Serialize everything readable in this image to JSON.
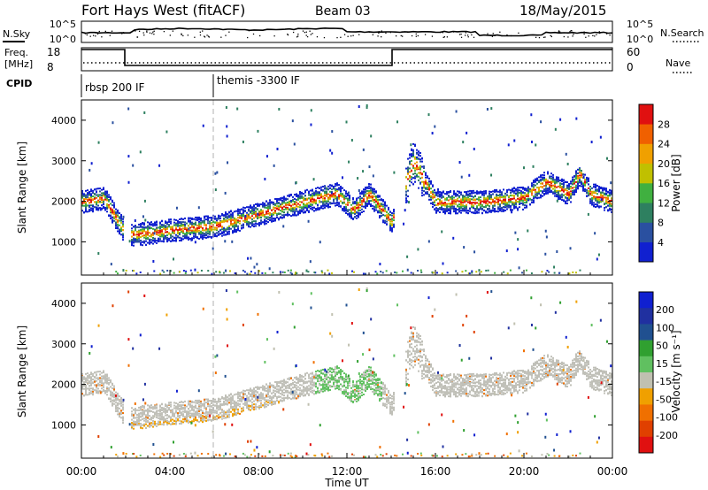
{
  "header": {
    "station": "Fort Hays West (fitACF)",
    "beam": "Beam 03",
    "date": "18/May/2015"
  },
  "noise_panel": {
    "left_label": "N.Sky",
    "right_label": "N.Search",
    "left_ticks": [
      "10^5",
      "10^0"
    ],
    "right_ticks": [
      "10^5",
      "10^0"
    ]
  },
  "freq_panel": {
    "left_label_1": "Freq.",
    "left_label_2": "[MHz]",
    "right_label": "Nave",
    "left_ticks": [
      "18",
      "8"
    ],
    "right_ticks": [
      "60",
      "0"
    ]
  },
  "cpid": {
    "label": "CPID",
    "modes": [
      "rbsp 200 IF",
      "themis -3300 IF"
    ]
  },
  "time_axis": {
    "label": "Time UT",
    "ticks": [
      "00:00",
      "04:00",
      "08:00",
      "12:00",
      "16:00",
      "20:00",
      "00:00"
    ]
  },
  "colors": {
    "power": [
      "#1020d0",
      "#2a50a0",
      "#2e8060",
      "#40b040",
      "#c0c000",
      "#f0a000",
      "#f06000",
      "#e01010"
    ],
    "velocity": [
      "#1020d0",
      "#2030a0",
      "#205090",
      "#30a030",
      "#60c060",
      "#c0c0b0",
      "#f0a000",
      "#f07000",
      "#e04000",
      "#e01010"
    ],
    "ground": "#c0c0b8"
  },
  "chart_data": [
    {
      "type": "heatmap",
      "name": "power",
      "xlabel": "Time UT",
      "ylabel": "Slant Range [km]",
      "xlim": [
        0,
        24
      ],
      "ylim": [
        180,
        4500
      ],
      "y_ticks": [
        1000,
        2000,
        3000,
        4000
      ],
      "colorbar": {
        "label": "Power [dB]",
        "range": [
          0,
          32
        ],
        "ticks": [
          4,
          8,
          12,
          16,
          20,
          24,
          28
        ]
      },
      "scatter_band": {
        "time_h": [
          0,
          1,
          2,
          2.5,
          4,
          6,
          8,
          10,
          11.5,
          12.3,
          13,
          14,
          15,
          16,
          18,
          20,
          21,
          22,
          22.5,
          23,
          24
        ],
        "range_km": [
          2000,
          2100,
          1200,
          1200,
          1300,
          1400,
          1700,
          2000,
          2200,
          1800,
          2200,
          1500,
          3000,
          2000,
          2000,
          2100,
          2500,
          2200,
          2700,
          2200,
          2000
        ]
      }
    },
    {
      "type": "heatmap",
      "name": "velocity",
      "xlabel": "Time UT",
      "ylabel": "Slant Range [km]",
      "xlim": [
        0,
        24
      ],
      "ylim": [
        180,
        4500
      ],
      "y_ticks": [
        1000,
        2000,
        3000,
        4000
      ],
      "colorbar": {
        "label": "Velocity [m s⁻¹]",
        "ticks": [
          200,
          100,
          50,
          15,
          -15,
          -50,
          -100,
          -200
        ]
      }
    }
  ]
}
